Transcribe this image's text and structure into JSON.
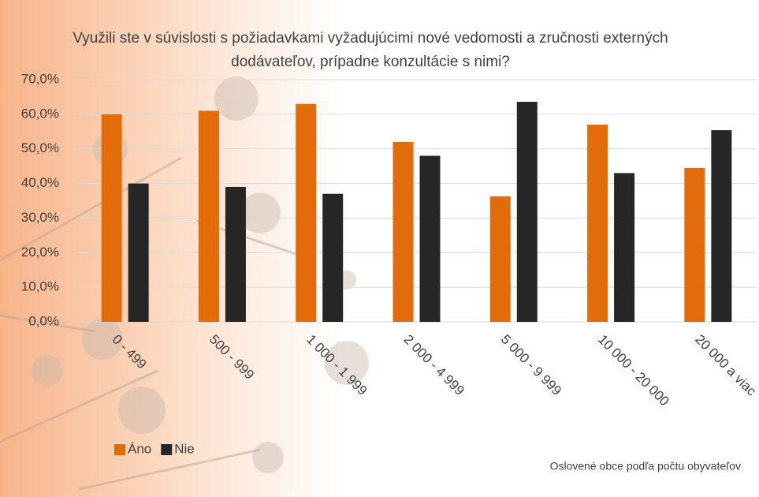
{
  "chart_data": {
    "type": "bar",
    "title": "Využili ste v súvislosti s požiadavkami vyžadujúcimi nové vedomosti a zručnosti externých dodávateľov, prípadne konzultácie s nimi?",
    "x_label": "Oslovené obce podľa počtu obyvateľov",
    "categories": [
      "0 - 499",
      "500 - 999",
      "1 000 - 1 999",
      "2 000 - 4 999",
      "5 000 - 9 999",
      "10 000 - 20 000",
      "20 000 a viac"
    ],
    "series": [
      {
        "name": "Áno",
        "color": "#e36c0a",
        "values": [
          60,
          61,
          63,
          52,
          36.3,
          57,
          44.5
        ]
      },
      {
        "name": "Nie",
        "color": "#262626",
        "values": [
          40,
          39,
          37,
          48,
          63.6,
          43,
          55.4
        ]
      }
    ],
    "ylim": [
      0,
      70
    ],
    "yticks": [
      {
        "value": 0,
        "label": "0,0%"
      },
      {
        "value": 10,
        "label": "10,0%"
      },
      {
        "value": 20,
        "label": "20,0%"
      },
      {
        "value": 30,
        "label": "30,0%"
      },
      {
        "value": 40,
        "label": "40,0%"
      },
      {
        "value": 50,
        "label": "50,0%"
      },
      {
        "value": 60,
        "label": "60,0%"
      },
      {
        "value": 70,
        "label": "70,0%"
      }
    ],
    "grid": true,
    "legend": "bottom-left"
  }
}
